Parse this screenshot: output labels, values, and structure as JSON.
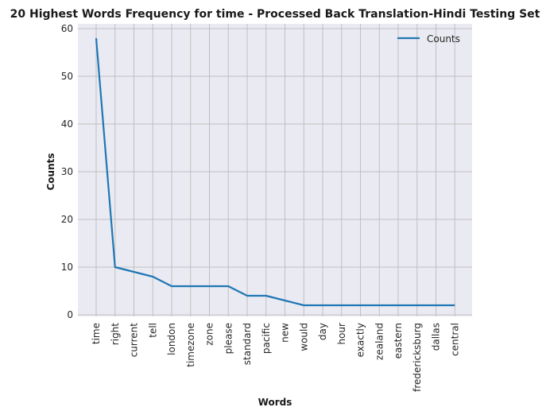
{
  "chart_data": {
    "type": "line",
    "title": "20 Highest Words Frequency for time - Processed Back Translation-Hindi Testing Set",
    "xlabel": "Words",
    "ylabel": "Counts",
    "categories": [
      "time",
      "right",
      "current",
      "tell",
      "london",
      "timezone",
      "zone",
      "please",
      "standard",
      "pacific",
      "new",
      "would",
      "day",
      "hour",
      "exactly",
      "zealand",
      "eastern",
      "fredericksburg",
      "dallas",
      "central"
    ],
    "series": [
      {
        "name": "Counts",
        "color": "#1f77b4",
        "values": [
          58,
          10,
          9,
          8,
          6,
          6,
          6,
          6,
          4,
          4,
          3,
          2,
          2,
          2,
          2,
          2,
          2,
          2,
          2,
          2
        ]
      }
    ],
    "ylim": [
      0,
      60
    ],
    "yticks": [
      0,
      10,
      20,
      30,
      40,
      50,
      60
    ],
    "grid": true,
    "legend": "top-right",
    "background": "#eaeaf2",
    "grid_color": "#c0c0c0"
  }
}
